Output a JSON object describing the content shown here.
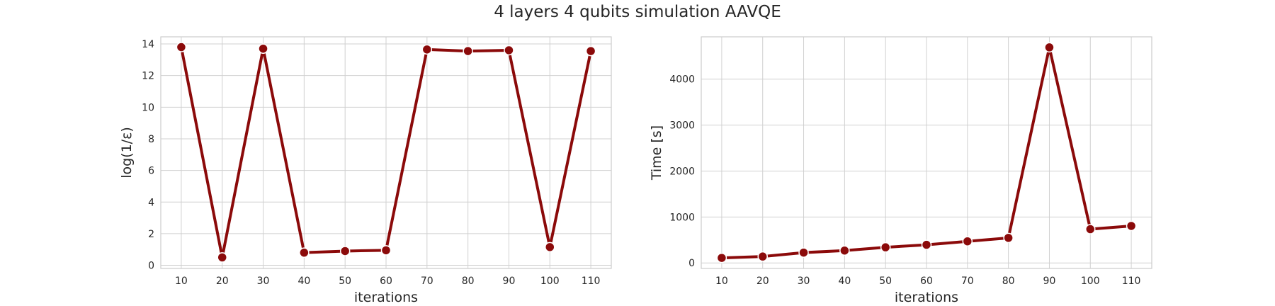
{
  "title": "4 layers 4 qubits simulation AAVQE",
  "colors": {
    "line": "#8b0a0a",
    "grid": "#d0d0d0",
    "frame": "#cccccc"
  },
  "chart_data": [
    {
      "type": "line",
      "title": "",
      "xlabel": "iterations",
      "ylabel": "log(1/ε)",
      "x": [
        10,
        20,
        30,
        40,
        50,
        60,
        70,
        80,
        90,
        100,
        110
      ],
      "series": [
        {
          "values": [
            13.8,
            0.5,
            13.7,
            0.8,
            0.9,
            0.95,
            13.65,
            13.55,
            13.6,
            1.15,
            13.55
          ]
        }
      ],
      "xticks": [
        10,
        20,
        30,
        40,
        50,
        60,
        70,
        80,
        90,
        100,
        110
      ],
      "yticks": [
        0,
        2,
        4,
        6,
        8,
        10,
        12,
        14
      ],
      "xlim": [
        5,
        115
      ],
      "ylim": [
        -0.2,
        14.45
      ],
      "grid": true,
      "markers": true
    },
    {
      "type": "line",
      "title": "",
      "xlabel": "iterations",
      "ylabel": "Time [s]",
      "x": [
        10,
        20,
        30,
        40,
        50,
        60,
        70,
        80,
        90,
        100,
        110
      ],
      "series": [
        {
          "values": [
            110,
            140,
            225,
            270,
            340,
            395,
            470,
            545,
            4690,
            735,
            805
          ]
        }
      ],
      "xticks": [
        10,
        20,
        30,
        40,
        50,
        60,
        70,
        80,
        90,
        100,
        110
      ],
      "yticks": [
        0,
        1000,
        2000,
        3000,
        4000
      ],
      "xlim": [
        5,
        115
      ],
      "ylim": [
        -120,
        4920
      ],
      "grid": true,
      "markers": true
    }
  ]
}
